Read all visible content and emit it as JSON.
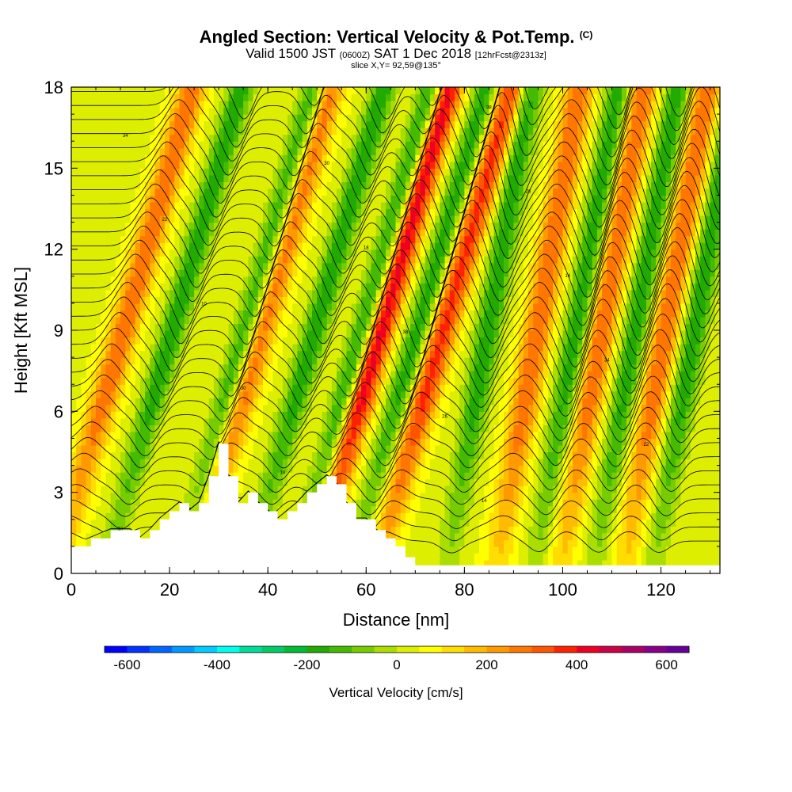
{
  "title": {
    "main": "Angled Section: Vertical Velocity & Pot.Temp.",
    "copyright": "(C)",
    "valid_prefix": "Valid 1500 JST",
    "valid_z": "(0600Z)",
    "valid_date": "SAT 1 Dec 2018",
    "forecast": "[12hrFcst@2313z]",
    "slice": "slice X,Y= 92,59@135°"
  },
  "chart_data": {
    "type": "heatmap",
    "xlabel": "Distance [nm]",
    "ylabel": "Height [Kft MSL]",
    "xlim": [
      0,
      132
    ],
    "ylim": [
      0,
      18
    ],
    "x_ticks": [
      "0",
      "20",
      "40",
      "60",
      "80",
      "100",
      "120"
    ],
    "y_ticks": [
      "0",
      "3",
      "6",
      "9",
      "12",
      "15",
      "18"
    ],
    "colorbar": {
      "label": "Vertical Velocity [cm/s]",
      "ticks": [
        "-600",
        "-400",
        "-200",
        "0",
        "200",
        "400",
        "600"
      ],
      "range": [
        -650,
        650
      ],
      "colors": [
        "#0000ff",
        "#0033ff",
        "#0066ff",
        "#0099ff",
        "#00ccff",
        "#00ffee",
        "#00dd99",
        "#00cc66",
        "#00bb33",
        "#22aa00",
        "#44bb00",
        "#77cc00",
        "#aadd00",
        "#ddee00",
        "#ffff00",
        "#ffdd00",
        "#ffbb00",
        "#ff9900",
        "#ff7700",
        "#ff5500",
        "#ff2200",
        "#ee0022",
        "#cc0044",
        "#aa0066",
        "#880088",
        "#660099"
      ]
    },
    "updraft_centers_nm": [
      6,
      34,
      58,
      71,
      92,
      105,
      118
    ],
    "downdraft_centers_nm": [
      16,
      31,
      45,
      55,
      66,
      82,
      100,
      112,
      124
    ],
    "terrain_height_kft": {
      "x": [
        0,
        4,
        8,
        12,
        14,
        16,
        18,
        20,
        22,
        24,
        26,
        28,
        30,
        32,
        34,
        36,
        38,
        40,
        42,
        44,
        46,
        48,
        50,
        52,
        54,
        56,
        58,
        60,
        62,
        64,
        66,
        68,
        70,
        72,
        80,
        90,
        100,
        110,
        120,
        132
      ],
      "y": [
        1.0,
        1.3,
        1.6,
        1.6,
        1.3,
        1.6,
        2.0,
        2.3,
        2.6,
        2.3,
        2.6,
        3.6,
        4.8,
        3.6,
        2.6,
        3.0,
        2.6,
        2.3,
        2.0,
        2.3,
        2.6,
        3.0,
        3.3,
        3.6,
        3.3,
        2.6,
        2.0,
        2.0,
        1.6,
        1.3,
        1.0,
        0.6,
        0.3,
        0.3,
        0.3,
        0.3,
        0.3,
        0.3,
        0.3,
        0.3
      ]
    },
    "isentrope_labels": [
      "10",
      "12",
      "14",
      "16",
      "18",
      "20",
      "22",
      "24",
      "26",
      "28",
      "30",
      "32",
      "34",
      "36",
      "38",
      "40"
    ]
  }
}
